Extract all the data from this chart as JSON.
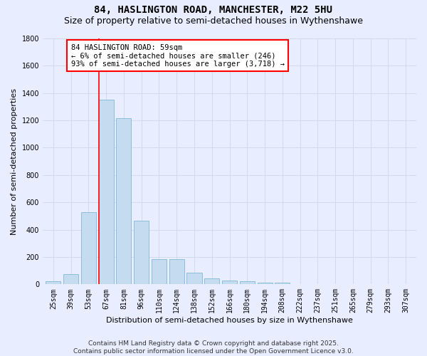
{
  "title": "84, HASLINGTON ROAD, MANCHESTER, M22 5HU",
  "subtitle": "Size of property relative to semi-detached houses in Wythenshawe",
  "xlabel": "Distribution of semi-detached houses by size in Wythenshawe",
  "ylabel": "Number of semi-detached properties",
  "categories": [
    "25sqm",
    "39sqm",
    "53sqm",
    "67sqm",
    "81sqm",
    "96sqm",
    "110sqm",
    "124sqm",
    "138sqm",
    "152sqm",
    "166sqm",
    "180sqm",
    "194sqm",
    "208sqm",
    "222sqm",
    "237sqm",
    "251sqm",
    "265sqm",
    "279sqm",
    "293sqm",
    "307sqm"
  ],
  "values": [
    20,
    75,
    530,
    1350,
    1215,
    465,
    185,
    185,
    85,
    45,
    30,
    20,
    10,
    10,
    0,
    0,
    0,
    0,
    0,
    0,
    0
  ],
  "bar_color": "#c5dcf0",
  "bar_edge_color": "#7fb8d8",
  "vline_x": 2.57,
  "annotation_text": "84 HASLINGTON ROAD: 59sqm\n← 6% of semi-detached houses are smaller (246)\n93% of semi-detached houses are larger (3,718) →",
  "annotation_box_color": "white",
  "annotation_box_edge_color": "red",
  "vline_color": "red",
  "ylim": [
    0,
    1800
  ],
  "yticks": [
    0,
    200,
    400,
    600,
    800,
    1000,
    1200,
    1400,
    1600,
    1800
  ],
  "footer": "Contains HM Land Registry data © Crown copyright and database right 2025.\nContains public sector information licensed under the Open Government Licence v3.0.",
  "title_fontsize": 10,
  "subtitle_fontsize": 9,
  "axis_label_fontsize": 8,
  "tick_fontsize": 7,
  "annotation_fontsize": 7.5,
  "footer_fontsize": 6.5,
  "background_color": "#e8eeff",
  "grid_color": "#d0d8e8"
}
